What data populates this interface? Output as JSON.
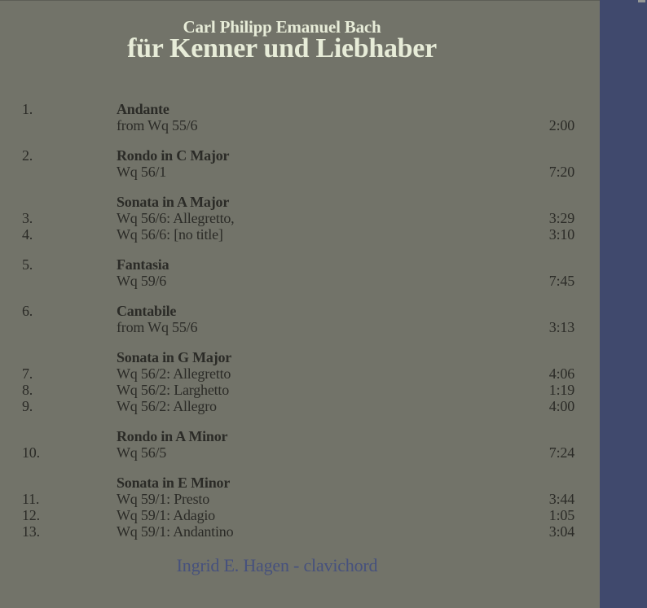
{
  "colors": {
    "background": "#727369",
    "stripe": "#40496d",
    "header_text": "#e7ecd8",
    "track_text": "#2b2b27",
    "credit_text": "#46517d"
  },
  "header": {
    "artist": "Carl Philipp Emanuel Bach",
    "title": "für Kenner und Liebhaber"
  },
  "tracklist": {
    "lines": [
      {
        "num": "1.",
        "text": "Andante",
        "bold": true,
        "time": ""
      },
      {
        "num": "",
        "text": "from Wq 55/6",
        "bold": false,
        "time": "2:00"
      },
      {
        "num": "2.",
        "text": "Rondo in C Major",
        "bold": true,
        "time": ""
      },
      {
        "num": "",
        "text": "Wq 56/1",
        "bold": false,
        "time": "7:20"
      },
      {
        "num": "",
        "text": "Sonata in A Major",
        "bold": true,
        "time": ""
      },
      {
        "num": "3.",
        "text": "Wq 56/6: Allegretto,",
        "bold": false,
        "time": "3:29"
      },
      {
        "num": "4.",
        "text": "Wq 56/6: [no title]",
        "bold": false,
        "time": "3:10"
      },
      {
        "num": "5.",
        "text": "Fantasia",
        "bold": true,
        "time": ""
      },
      {
        "num": "",
        "text": "Wq 59/6",
        "bold": false,
        "time": "7:45"
      },
      {
        "num": "6.",
        "text": "Cantabile",
        "bold": true,
        "time": ""
      },
      {
        "num": "",
        "text": "from Wq 55/6",
        "bold": false,
        "time": "3:13"
      },
      {
        "num": "",
        "text": "Sonata in G Major",
        "bold": true,
        "time": ""
      },
      {
        "num": "7.",
        "text": "Wq 56/2: Allegretto",
        "bold": false,
        "time": "4:06"
      },
      {
        "num": "8.",
        "text": "Wq 56/2: Larghetto",
        "bold": false,
        "time": "1:19"
      },
      {
        "num": "9.",
        "text": "Wq 56/2: Allegro",
        "bold": false,
        "time": "4:00"
      },
      {
        "num": "",
        "text": "Rondo in A Minor",
        "bold": true,
        "time": ""
      },
      {
        "num": "10.",
        "text": "Wq 56/5",
        "bold": false,
        "time": "7:24"
      },
      {
        "num": "",
        "text": "Sonata in E Minor",
        "bold": true,
        "time": ""
      },
      {
        "num": "11.",
        "text": "Wq 59/1: Presto",
        "bold": false,
        "time": "3:44"
      },
      {
        "num": "12.",
        "text": "Wq 59/1: Adagio",
        "bold": false,
        "time": "1:05"
      },
      {
        "num": "13.",
        "text": "Wq 59/1: Andantino",
        "bold": false,
        "time": "3:04"
      }
    ]
  },
  "credit": {
    "text": "Ingrid E. Hagen - clavichord"
  }
}
